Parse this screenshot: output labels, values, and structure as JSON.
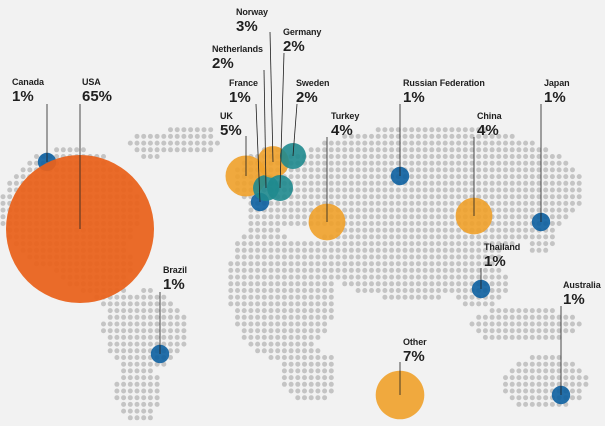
{
  "colors": {
    "background": "#f2f2f2",
    "dot": "#c4c4c4",
    "usa": "#e9621c",
    "large": "#f0a12a",
    "medium": "#1f8a8e",
    "small": "#0c5fa0",
    "leader_line": "#1f1f1f"
  },
  "countries": [
    {
      "id": "canada",
      "name": "Canada",
      "pct_label": "1%",
      "share": 1,
      "color_key": "small"
    },
    {
      "id": "usa",
      "name": "USA",
      "pct_label": "65%",
      "share": 65,
      "color_key": "usa"
    },
    {
      "id": "brazil",
      "name": "Brazil",
      "pct_label": "1%",
      "share": 1,
      "color_key": "small"
    },
    {
      "id": "uk",
      "name": "UK",
      "pct_label": "5%",
      "share": 5,
      "color_key": "large"
    },
    {
      "id": "france",
      "name": "France",
      "pct_label": "1%",
      "share": 1,
      "color_key": "small"
    },
    {
      "id": "netherlands",
      "name": "Netherlands",
      "pct_label": "2%",
      "share": 2,
      "color_key": "medium"
    },
    {
      "id": "norway",
      "name": "Norway",
      "pct_label": "3%",
      "share": 3,
      "color_key": "large"
    },
    {
      "id": "germany",
      "name": "Germany",
      "pct_label": "2%",
      "share": 2,
      "color_key": "medium"
    },
    {
      "id": "sweden",
      "name": "Sweden",
      "pct_label": "2%",
      "share": 2,
      "color_key": "medium"
    },
    {
      "id": "turkey",
      "name": "Turkey",
      "pct_label": "4%",
      "share": 4,
      "color_key": "large"
    },
    {
      "id": "russia",
      "name": "Russian Federation",
      "pct_label": "1%",
      "share": 1,
      "color_key": "small"
    },
    {
      "id": "china",
      "name": "China",
      "pct_label": "4%",
      "share": 4,
      "color_key": "large"
    },
    {
      "id": "japan",
      "name": "Japan",
      "pct_label": "1%",
      "share": 1,
      "color_key": "small"
    },
    {
      "id": "thailand",
      "name": "Thailand",
      "pct_label": "1%",
      "share": 1,
      "color_key": "small"
    },
    {
      "id": "australia",
      "name": "Australia",
      "pct_label": "1%",
      "share": 1,
      "color_key": "small"
    },
    {
      "id": "other",
      "name": "Other",
      "pct_label": "7%",
      "share": 7,
      "color_key": "large"
    }
  ]
}
